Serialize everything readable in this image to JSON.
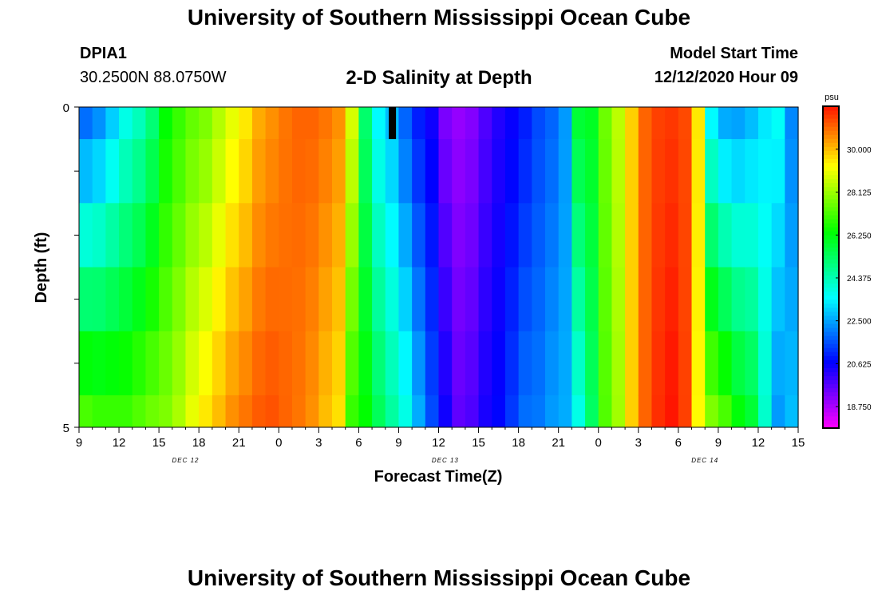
{
  "header": {
    "title": "University of Southern Mississippi Ocean Cube",
    "station": "DPIA1",
    "coords": "30.2500N 88.0750W",
    "subtitle": "2-D Salinity at Depth",
    "start_label": "Model Start Time",
    "start_time": "12/12/2020 Hour 09"
  },
  "footer": {
    "title": "University of Southern Mississippi Ocean Cube"
  },
  "chart_data": {
    "type": "heatmap",
    "title": "2-D Salinity at Depth",
    "xlabel": "Forecast Time(Z)",
    "ylabel": "Depth (ft)",
    "x_tick_labels": [
      "9",
      "12",
      "15",
      "18",
      "21",
      "0",
      "3",
      "6",
      "9",
      "12",
      "15",
      "18",
      "21",
      "0",
      "3",
      "6",
      "9",
      "12",
      "15"
    ],
    "date_labels": [
      "DEC 12",
      "DEC 13",
      "DEC 14"
    ],
    "y_tick_labels": [
      "0",
      "5"
    ],
    "ylim": [
      0,
      5
    ],
    "colorbar": {
      "unit": "psu",
      "ticks": [
        "30.000",
        "28.125",
        "26.250",
        "24.375",
        "22.500",
        "20.625",
        "18.750"
      ],
      "range": [
        17.81,
        31.88
      ]
    },
    "depth_layers": [
      "0-0.5",
      "0.5-1.5",
      "1.5-2.5",
      "2.5-3.5",
      "3.5-4.5",
      "4.5-5"
    ],
    "hour_offsets_from_start": [
      0,
      1,
      2,
      3,
      4,
      5,
      6,
      7,
      8,
      9,
      10,
      11,
      12,
      13,
      14,
      15,
      16,
      17,
      18,
      19,
      20,
      21,
      22,
      23,
      24,
      25,
      26,
      27,
      28,
      29,
      30,
      31,
      32,
      33,
      34,
      35,
      36,
      37,
      38,
      39,
      40,
      41,
      42,
      43,
      44,
      45,
      46,
      47,
      48,
      49,
      50,
      51,
      52,
      53
    ],
    "surface_salinity": [
      21.9,
      22.3,
      23.0,
      23.8,
      24.3,
      25.1,
      26.4,
      27.0,
      27.5,
      27.8,
      28.4,
      29.0,
      29.5,
      30.2,
      30.5,
      30.8,
      31.0,
      31.0,
      30.8,
      30.5,
      28.8,
      25.2,
      23.5,
      22.8,
      21.8,
      21.0,
      20.5,
      19.3,
      19.0,
      19.2,
      19.8,
      20.3,
      20.6,
      21.0,
      21.5,
      21.8,
      22.4,
      25.8,
      26.0,
      27.6,
      28.5,
      29.8,
      31.0,
      31.4,
      31.5,
      31.3,
      29.5,
      23.5,
      22.6,
      22.5,
      22.8,
      23.3,
      23.6,
      22.2
    ],
    "bottom_salinity": [
      27.2,
      27.0,
      27.0,
      27.0,
      27.3,
      27.6,
      27.8,
      28.3,
      29.0,
      29.5,
      30.0,
      30.5,
      30.8,
      31.1,
      31.2,
      31.0,
      30.8,
      30.5,
      30.0,
      29.6,
      27.0,
      26.4,
      25.4,
      24.6,
      23.8,
      22.6,
      21.5,
      20.5,
      19.6,
      19.8,
      20.4,
      20.7,
      21.3,
      21.9,
      22.0,
      22.4,
      22.6,
      23.8,
      25.3,
      27.3,
      28.2,
      29.8,
      31.0,
      31.6,
      31.9,
      31.4,
      29.3,
      27.8,
      27.2,
      26.3,
      25.8,
      24.1,
      22.4,
      22.8
    ],
    "missing_marker": {
      "hour_offset": 23.5,
      "depth_range": [
        0,
        0.5
      ]
    }
  }
}
